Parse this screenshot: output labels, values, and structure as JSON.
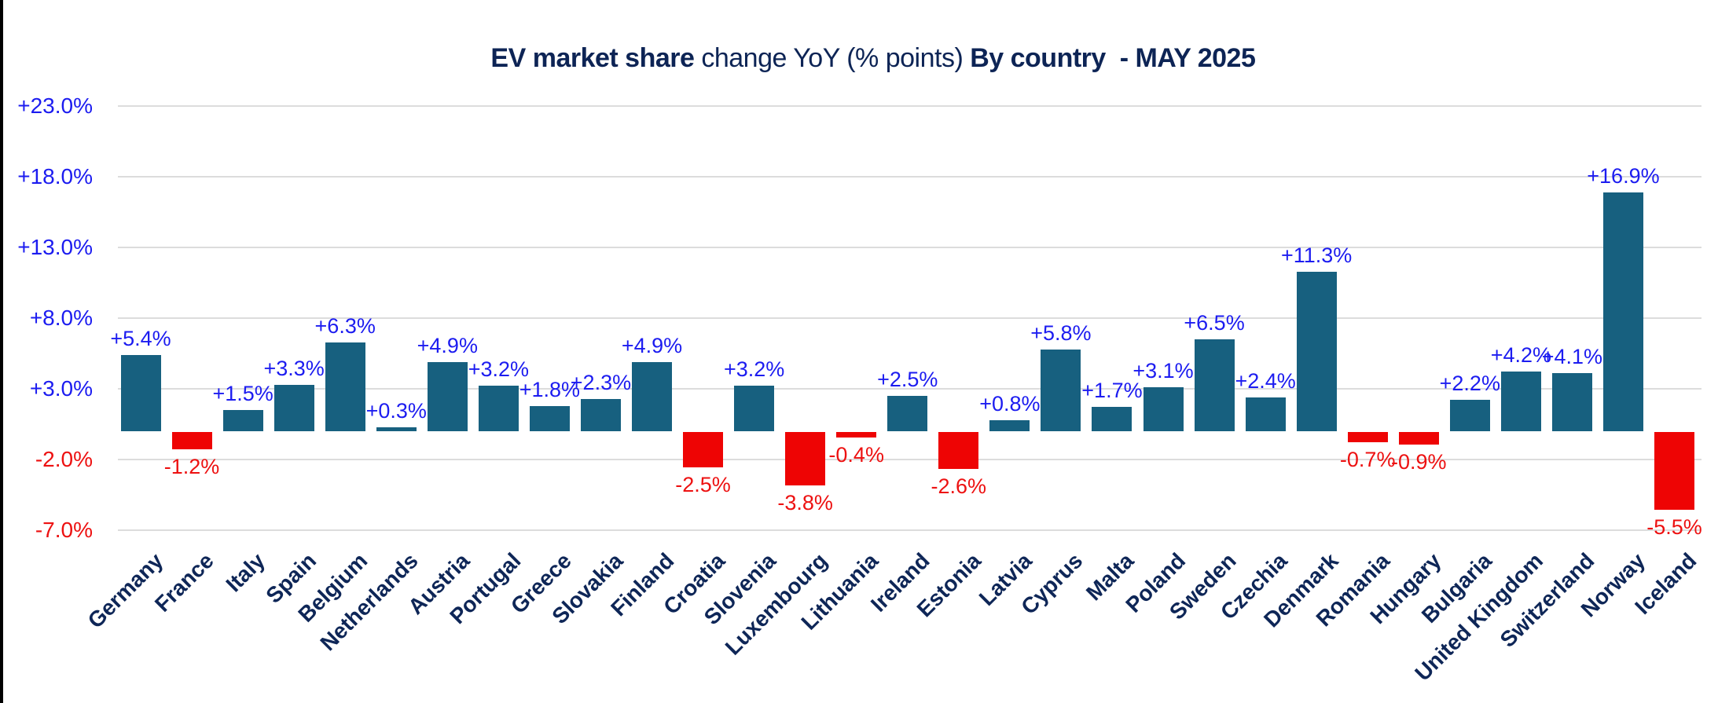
{
  "window": {
    "background": "#FFFFFF",
    "left_border_color": "#000000"
  },
  "title": {
    "segment1_bold": "EV market share",
    "segment2_regular": " change YoY (% points) ",
    "segment3_bold": "By country  - MAY 2025",
    "color": "#0D2455"
  },
  "y_axis": {
    "ticks": [
      {
        "label": "+23.0%",
        "value": 23
      },
      {
        "label": "+18.0%",
        "value": 18
      },
      {
        "label": "+13.0%",
        "value": 13
      },
      {
        "label": "+8.0%",
        "value": 8
      },
      {
        "label": "+3.0%",
        "value": 3
      },
      {
        "label": "-2.0%",
        "value": -2
      },
      {
        "label": "-7.0%",
        "value": -7
      }
    ],
    "positive_color": "#1C1CF0",
    "negative_color": "#ED1111"
  },
  "chart_data": {
    "type": "bar",
    "title": "EV market share change YoY (% points) By country - MAY 2025",
    "xlabel": "",
    "ylabel": "",
    "ylim": [
      -7,
      23
    ],
    "gridlines": [
      23,
      18,
      13,
      8,
      3,
      -2,
      -7
    ],
    "grid": true,
    "legend": false,
    "categories": [
      "Germany",
      "France",
      "Italy",
      "Spain",
      "Belgium",
      "Netherlands",
      "Austria",
      "Portugal",
      "Greece",
      "Slovakia",
      "Finland",
      "Croatia",
      "Slovenia",
      "Luxembourg",
      "Lithuania",
      "Ireland",
      "Estonia",
      "Latvia",
      "Cyprus",
      "Malta",
      "Poland",
      "Sweden",
      "Czechia",
      "Denmark",
      "Romania",
      "Hungary",
      "Bulgaria",
      "United Kingdom",
      "Switzerland",
      "Norway",
      "Iceland"
    ],
    "values": [
      5.4,
      -1.2,
      1.5,
      3.3,
      6.3,
      0.3,
      4.9,
      3.2,
      1.8,
      2.3,
      4.9,
      -2.5,
      3.2,
      -3.8,
      -0.4,
      2.5,
      -2.6,
      0.8,
      5.8,
      1.7,
      3.1,
      6.5,
      2.4,
      11.3,
      -0.7,
      -0.9,
      2.2,
      4.2,
      4.1,
      16.9,
      -5.5
    ],
    "bar_labels": [
      "+5.4%",
      "-1.2%",
      "+1.5%",
      "+3.3%",
      "+6.3%",
      "+0.3%",
      "+4.9%",
      "+3.2%",
      "+1.8%",
      "+2.3%",
      "+4.9%",
      "-2.5%",
      "+3.2%",
      "-3.8%",
      "-0.4%",
      "+2.5%",
      "-2.6%",
      "+0.8%",
      "+5.8%",
      "+1.7%",
      "+3.1%",
      "+6.5%",
      "+2.4%",
      "+11.3%",
      "-0.7%",
      "-0.9%",
      "+2.2%",
      "+4.2%",
      "+4.1%",
      "+16.9%",
      "-5.5%"
    ],
    "colors": {
      "positive_bar": "#17607F",
      "negative_bar": "#EE0404",
      "positive_label": "#1C1CF0",
      "negative_label": "#ED1111",
      "country_label": "#0E2657",
      "gridline": "#DCDCDC"
    }
  }
}
